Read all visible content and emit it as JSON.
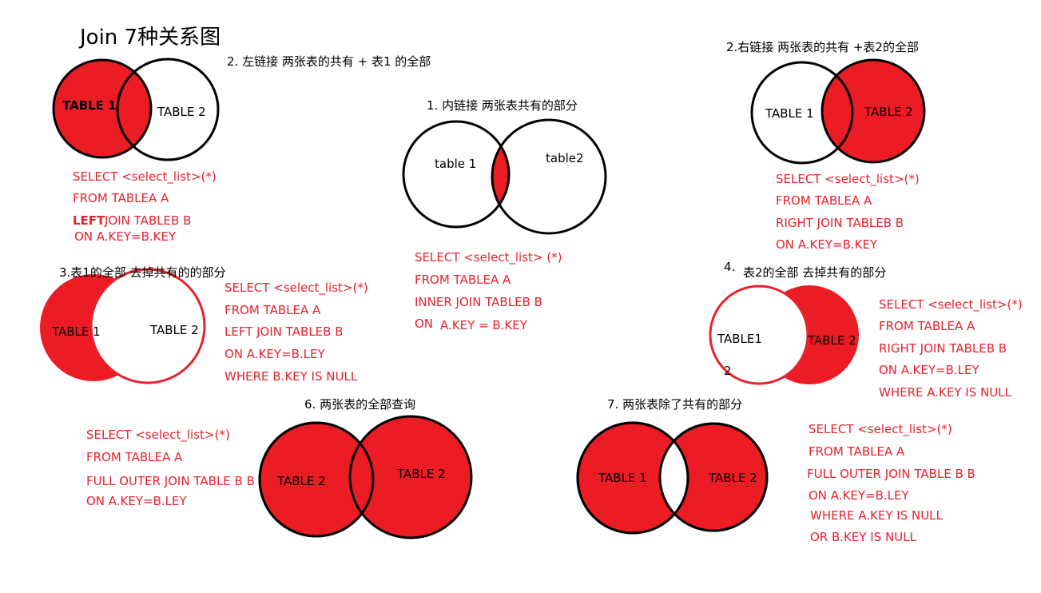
{
  "title": "Join 7种关系图",
  "colors": {
    "fill": "#ec1c24",
    "stroke": "#000000",
    "sql": "#e8212d"
  },
  "diagrams": {
    "inner": {
      "caption": "1.  内链接 两张表共有的部分",
      "label_a": "table 1",
      "label_b": "table2",
      "sql": [
        "SELECT <select_list> (*)",
        "FROM TABLEA A",
        "INNER JOIN TABLEB  B",
        "ON",
        "A.KEY = B.KEY"
      ]
    },
    "left": {
      "caption": "2. 左链接  两张表的共有 + 表1 的全部",
      "label_a": "TABLE 1",
      "label_b": "TABLE 2",
      "sql": [
        "SELECT <select_list>(*)",
        "FROM TABLEA A",
        "LEFT",
        "JOIN TABLEB B",
        "ON A.KEY=B.KEY"
      ]
    },
    "right": {
      "caption": "2.右链接  两张表的共有 +表2的全部",
      "label_a": "TABLE 1",
      "label_b": "TABLE 2",
      "sql": [
        "SELECT <select_list>(*)",
        "FROM TABLEA A",
        "RIGHT JOIN TABLEB B",
        "ON A.KEY=B.KEY"
      ]
    },
    "left_only": {
      "caption": "3.表1的全部 去掉共有的的部分",
      "label_a": "TABLE 1",
      "label_b": "TABLE 2",
      "sql": [
        "SELECT <select_list>(*)",
        "FROM TABLEA A",
        "LEFT JOIN TABLEB B",
        "ON A.KEY=B.LEY",
        "WHERE B.KEY IS NULL"
      ]
    },
    "right_only": {
      "caption_num": "4.",
      "caption": "表2的全部 去掉共有的部分",
      "label_a": "TABLE1",
      "label_a_extra": "2",
      "label_b": "TABLE 2",
      "sql": [
        "SELECT <select_list>(*)",
        "FROM TABLEA A",
        "RIGHT JOIN TABLEB B",
        "ON A.KEY=B.LEY",
        "WHERE A.KEY IS NULL"
      ]
    },
    "full": {
      "caption": "6. 两张表的全部查询",
      "label_a": "TABLE 2",
      "label_b": "TABLE 2",
      "sql": [
        "SELECT <select_list>(*)",
        "FROM TABLEA A",
        "FULL OUTER JOIN TABLE B B",
        "ON A.KEY=B.LEY"
      ]
    },
    "full_excl": {
      "caption": "7. 两张表除了共有的部分",
      "label_a": "TABLE 1",
      "label_b": "TABLE 2",
      "sql": [
        "SELECT <select_list>(*)",
        "FROM TABLEA A",
        "FULL OUTER JOIN TABLE B B",
        "ON A.KEY=B.LEY",
        "WHERE A.KEY IS NULL",
        "OR B.KEY IS NULL"
      ]
    }
  }
}
